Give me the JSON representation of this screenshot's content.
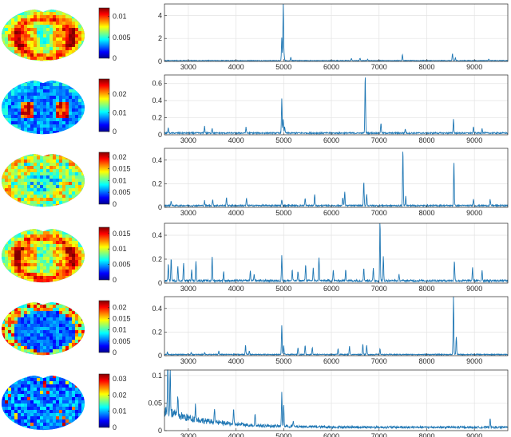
{
  "colormap": [
    "#00008f",
    "#0000ff",
    "#0080ff",
    "#00ffff",
    "#80ff80",
    "#ffff00",
    "#ff8000",
    "#ff0000",
    "#800000"
  ],
  "line_color": "#1f77b4",
  "chart_data": [
    {
      "type": "heatmap",
      "colorbar_ticks": [
        "0",
        "0.005",
        "0.01"
      ],
      "clim": [
        0,
        0.012
      ],
      "pattern": "high"
    },
    {
      "type": "line",
      "xlim": [
        2500,
        9700
      ],
      "ylim": [
        0,
        5
      ],
      "yticks": [
        "0",
        "2",
        "4"
      ],
      "xticks": [
        "3000",
        "4000",
        "5000",
        "6000",
        "7000",
        "8000",
        "9000"
      ],
      "baseline": 0.07,
      "grid": true,
      "peaks": [
        [
          4960,
          2.0
        ],
        [
          4990,
          4.9
        ],
        [
          5010,
          0.5
        ],
        [
          5150,
          0.3
        ],
        [
          6420,
          0.2
        ],
        [
          6600,
          0.2
        ],
        [
          6760,
          0.15
        ],
        [
          7490,
          0.55
        ],
        [
          8540,
          0.6
        ],
        [
          8600,
          0.25
        ],
        [
          9300,
          0.15
        ]
      ]
    },
    {
      "type": "heatmap",
      "colorbar_ticks": [
        "0",
        "0.01",
        "0.02"
      ],
      "clim": [
        0,
        0.028
      ],
      "pattern": "low"
    },
    {
      "type": "line",
      "xlim": [
        2500,
        9700
      ],
      "ylim": [
        0,
        0.7
      ],
      "yticks": [
        "0",
        "0.2",
        "0.4",
        "0.6"
      ],
      "xticks": [
        "3000",
        "4000",
        "5000",
        "6000",
        "7000",
        "8000",
        "9000"
      ],
      "baseline": 0.02,
      "grid": true,
      "peaks": [
        [
          2580,
          0.06
        ],
        [
          3340,
          0.08
        ],
        [
          3500,
          0.06
        ],
        [
          4210,
          0.07
        ],
        [
          4960,
          0.4
        ],
        [
          4990,
          0.16
        ],
        [
          5020,
          0.08
        ],
        [
          6710,
          0.68
        ],
        [
          7040,
          0.12
        ],
        [
          7550,
          0.05
        ],
        [
          8560,
          0.16
        ],
        [
          8980,
          0.07
        ],
        [
          9160,
          0.06
        ]
      ]
    },
    {
      "type": "heatmap",
      "colorbar_ticks": [
        "0",
        "0.005",
        "0.01",
        "0.015",
        "0.02"
      ],
      "clim": [
        0,
        0.022
      ],
      "pattern": "mid"
    },
    {
      "type": "line",
      "xlim": [
        2500,
        9700
      ],
      "ylim": [
        0,
        0.5
      ],
      "yticks": [
        "0",
        "0.2",
        "0.4"
      ],
      "xticks": [
        "3000",
        "4000",
        "5000",
        "6000",
        "7000",
        "8000",
        "9000"
      ],
      "baseline": 0.015,
      "grid": true,
      "peaks": [
        [
          2640,
          0.04
        ],
        [
          3340,
          0.04
        ],
        [
          3510,
          0.05
        ],
        [
          3800,
          0.07
        ],
        [
          4220,
          0.06
        ],
        [
          4960,
          0.05
        ],
        [
          5450,
          0.06
        ],
        [
          5650,
          0.1
        ],
        [
          6240,
          0.07
        ],
        [
          6280,
          0.12
        ],
        [
          6680,
          0.2
        ],
        [
          6740,
          0.1
        ],
        [
          7500,
          0.48
        ],
        [
          7560,
          0.08
        ],
        [
          8570,
          0.38
        ],
        [
          8980,
          0.06
        ],
        [
          9330,
          0.05
        ]
      ]
    },
    {
      "type": "heatmap",
      "colorbar_ticks": [
        "0",
        "0.005",
        "0.01",
        "0.015"
      ],
      "clim": [
        0,
        0.017
      ],
      "pattern": "high"
    },
    {
      "type": "line",
      "xlim": [
        2500,
        9700
      ],
      "ylim": [
        0,
        0.5
      ],
      "yticks": [
        "0",
        "0.2",
        "0.4"
      ],
      "xticks": [
        "3000",
        "4000",
        "5000",
        "6000",
        "7000",
        "8000",
        "9000"
      ],
      "baseline": 0.02,
      "grid": true,
      "peaks": [
        [
          2580,
          0.14
        ],
        [
          2640,
          0.19
        ],
        [
          2780,
          0.12
        ],
        [
          2900,
          0.15
        ],
        [
          3070,
          0.1
        ],
        [
          3160,
          0.17
        ],
        [
          3500,
          0.2
        ],
        [
          3740,
          0.08
        ],
        [
          4300,
          0.08
        ],
        [
          4380,
          0.06
        ],
        [
          4960,
          0.21
        ],
        [
          5180,
          0.09
        ],
        [
          5300,
          0.08
        ],
        [
          5460,
          0.14
        ],
        [
          5620,
          0.11
        ],
        [
          5740,
          0.2
        ],
        [
          6040,
          0.09
        ],
        [
          6300,
          0.1
        ],
        [
          6680,
          0.11
        ],
        [
          6880,
          0.1
        ],
        [
          7020,
          0.5
        ],
        [
          7090,
          0.2
        ],
        [
          7420,
          0.05
        ],
        [
          8580,
          0.17
        ],
        [
          8960,
          0.11
        ],
        [
          9160,
          0.09
        ]
      ]
    },
    {
      "type": "heatmap",
      "colorbar_ticks": [
        "0",
        "0.005",
        "0.01",
        "0.015",
        "0.02"
      ],
      "clim": [
        0,
        0.023
      ],
      "pattern": "sparse"
    },
    {
      "type": "line",
      "xlim": [
        2500,
        9700
      ],
      "ylim": [
        0,
        0.5
      ],
      "yticks": [
        "0",
        "0.2",
        "0.4"
      ],
      "xticks": [
        "3000",
        "4000",
        "5000",
        "6000",
        "7000",
        "8000",
        "9000"
      ],
      "baseline": 0.01,
      "grid": true,
      "peaks": [
        [
          2560,
          0.02
        ],
        [
          3060,
          0.02
        ],
        [
          3340,
          0.02
        ],
        [
          3640,
          0.03
        ],
        [
          4200,
          0.08
        ],
        [
          4280,
          0.03
        ],
        [
          4960,
          0.25
        ],
        [
          5000,
          0.08
        ],
        [
          5300,
          0.06
        ],
        [
          5450,
          0.08
        ],
        [
          5600,
          0.06
        ],
        [
          6140,
          0.05
        ],
        [
          6380,
          0.07
        ],
        [
          6660,
          0.09
        ],
        [
          6740,
          0.08
        ],
        [
          7020,
          0.05
        ],
        [
          8560,
          0.49
        ],
        [
          8620,
          0.15
        ]
      ]
    },
    {
      "type": "heatmap",
      "colorbar_ticks": [
        "0",
        "0.01",
        "0.02",
        "0.03"
      ],
      "clim": [
        0,
        0.033
      ],
      "pattern": "noise"
    },
    {
      "type": "line",
      "xlim": [
        2500,
        9700
      ],
      "ylim": [
        0,
        0.11
      ],
      "yticks": [
        "0",
        "0.05",
        "0.1"
      ],
      "xticks": [
        "3000",
        "4000",
        "5000",
        "6000",
        "7000",
        "8000",
        "9000"
      ],
      "baseline": 0.006,
      "grid": true,
      "noisy": true,
      "peaks": [
        [
          2570,
          0.1
        ],
        [
          2620,
          0.09
        ],
        [
          2780,
          0.035
        ],
        [
          3150,
          0.03
        ],
        [
          3550,
          0.028
        ],
        [
          3950,
          0.025
        ],
        [
          4400,
          0.022
        ],
        [
          4960,
          0.06
        ],
        [
          5000,
          0.04
        ],
        [
          5200,
          0.01
        ],
        [
          9330,
          0.018
        ]
      ]
    }
  ]
}
